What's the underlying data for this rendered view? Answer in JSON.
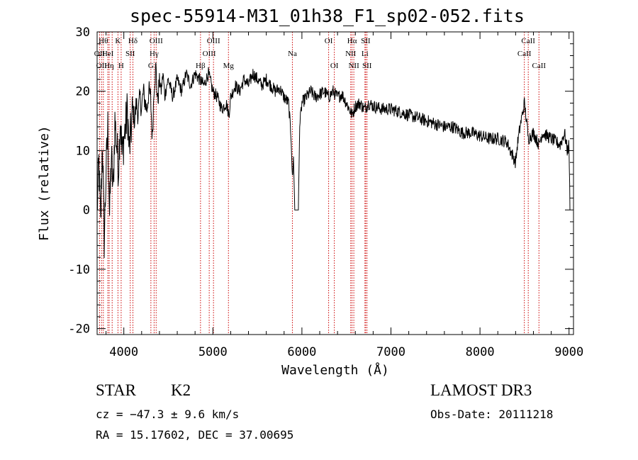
{
  "title": "spec-55914-M31_01h38_F1_sp02-052.fits",
  "info": {
    "class": "STAR",
    "subclass": "K2",
    "survey": "LAMOST DR3",
    "cz": "cz = −47.3 ± 9.6 km/s",
    "obs_date": "Obs-Date: 20111218",
    "radec": "RA =  15.17602, DEC =  37.00695"
  },
  "colors": {
    "spectrum": "#000000",
    "lines": "#cc0000",
    "axes": "#000000"
  },
  "chart_data": {
    "type": "line",
    "title": "spec-55914-M31_01h38_F1_sp02-052.fits",
    "xlabel": "Wavelength (Å)",
    "ylabel": "Flux (relative)",
    "xlim": [
      3700,
      9050
    ],
    "ylim": [
      -21,
      30
    ],
    "xticks": [
      4000,
      5000,
      6000,
      7000,
      8000,
      9000
    ],
    "yticks": [
      -20,
      -10,
      0,
      10,
      20,
      30
    ],
    "series": [
      {
        "name": "flux",
        "points": [
          [
            3700,
            0
          ],
          [
            3720,
            8
          ],
          [
            3740,
            -3
          ],
          [
            3760,
            12
          ],
          [
            3780,
            -5
          ],
          [
            3800,
            6
          ],
          [
            3820,
            14
          ],
          [
            3840,
            -1
          ],
          [
            3860,
            9
          ],
          [
            3880,
            3
          ],
          [
            3900,
            15
          ],
          [
            3920,
            11
          ],
          [
            3940,
            7
          ],
          [
            3960,
            16
          ],
          [
            3980,
            9
          ],
          [
            4000,
            12
          ],
          [
            4020,
            14
          ],
          [
            4040,
            17
          ],
          [
            4060,
            10
          ],
          [
            4080,
            13
          ],
          [
            4100,
            17
          ],
          [
            4120,
            15
          ],
          [
            4140,
            18
          ],
          [
            4160,
            16
          ],
          [
            4180,
            19
          ],
          [
            4200,
            17
          ],
          [
            4220,
            20
          ],
          [
            4240,
            18
          ],
          [
            4260,
            17
          ],
          [
            4280,
            20
          ],
          [
            4300,
            19
          ],
          [
            4320,
            12
          ],
          [
            4340,
            21
          ],
          [
            4360,
            24
          ],
          [
            4380,
            18
          ],
          [
            4400,
            22
          ],
          [
            4420,
            20
          ],
          [
            4440,
            23
          ],
          [
            4460,
            19
          ],
          [
            4480,
            21
          ],
          [
            4500,
            22
          ],
          [
            4550,
            19
          ],
          [
            4600,
            22
          ],
          [
            4650,
            20
          ],
          [
            4700,
            23
          ],
          [
            4750,
            21
          ],
          [
            4800,
            23
          ],
          [
            4850,
            22
          ],
          [
            4900,
            21
          ],
          [
            4950,
            23
          ],
          [
            5000,
            20
          ],
          [
            5050,
            19
          ],
          [
            5100,
            17
          ],
          [
            5150,
            18
          ],
          [
            5180,
            16
          ],
          [
            5200,
            19
          ],
          [
            5250,
            21
          ],
          [
            5300,
            20
          ],
          [
            5350,
            22
          ],
          [
            5400,
            21
          ],
          [
            5450,
            23
          ],
          [
            5500,
            22
          ],
          [
            5550,
            21
          ],
          [
            5600,
            22
          ],
          [
            5650,
            21
          ],
          [
            5700,
            20
          ],
          [
            5750,
            20.5
          ],
          [
            5800,
            19
          ],
          [
            5850,
            18
          ],
          [
            5880,
            12
          ],
          [
            5893,
            5
          ],
          [
            5905,
            9
          ],
          [
            5920,
            0
          ],
          [
            5960,
            0
          ],
          [
            5975,
            14
          ],
          [
            6000,
            18
          ],
          [
            6050,
            19
          ],
          [
            6100,
            20
          ],
          [
            6150,
            19
          ],
          [
            6200,
            19.5
          ],
          [
            6250,
            20
          ],
          [
            6300,
            19
          ],
          [
            6350,
            20
          ],
          [
            6400,
            19
          ],
          [
            6450,
            19.5
          ],
          [
            6500,
            18
          ],
          [
            6563,
            16
          ],
          [
            6600,
            17.5
          ],
          [
            6650,
            18
          ],
          [
            6700,
            17
          ],
          [
            6750,
            18
          ],
          [
            6800,
            17.5
          ],
          [
            6900,
            17
          ],
          [
            7000,
            17
          ],
          [
            7100,
            16.5
          ],
          [
            7200,
            16
          ],
          [
            7300,
            15.5
          ],
          [
            7400,
            15
          ],
          [
            7500,
            14.5
          ],
          [
            7600,
            14
          ],
          [
            7700,
            14
          ],
          [
            7800,
            13
          ],
          [
            7900,
            13
          ],
          [
            8000,
            12.5
          ],
          [
            8100,
            12
          ],
          [
            8200,
            12
          ],
          [
            8300,
            11.5
          ],
          [
            8400,
            8
          ],
          [
            8420,
            11
          ],
          [
            8450,
            14
          ],
          [
            8498,
            18
          ],
          [
            8530,
            14
          ],
          [
            8542,
            12
          ],
          [
            8600,
            13
          ],
          [
            8662,
            11
          ],
          [
            8700,
            13
          ],
          [
            8800,
            12
          ],
          [
            8900,
            11
          ],
          [
            8950,
            13
          ],
          [
            8980,
            10
          ],
          [
            9000,
            11
          ],
          [
            9010,
            0
          ]
        ]
      }
    ],
    "lines": [
      {
        "wavelength": 3727,
        "label": "OII",
        "row": 1
      },
      {
        "wavelength": 3750,
        "label": "OII",
        "row": 2
      },
      {
        "wavelength": 3770,
        "label": "Hθ",
        "row": 0
      },
      {
        "wavelength": 3820,
        "label": "HeI",
        "row": 1
      },
      {
        "wavelength": 3835,
        "label": "Hη",
        "row": 2
      },
      {
        "wavelength": 3869,
        "label": "",
        "row": 0
      },
      {
        "wavelength": 3934,
        "label": "K",
        "row": 0
      },
      {
        "wavelength": 3970,
        "label": "H",
        "row": 2
      },
      {
        "wavelength": 4072,
        "label": "SII",
        "row": 1
      },
      {
        "wavelength": 4102,
        "label": "Hδ",
        "row": 0
      },
      {
        "wavelength": 4304,
        "label": "G",
        "row": 2
      },
      {
        "wavelength": 4340,
        "label": "Hγ",
        "row": 1
      },
      {
        "wavelength": 4363,
        "label": "OIII",
        "row": 0
      },
      {
        "wavelength": 4861,
        "label": "Hβ",
        "row": 2
      },
      {
        "wavelength": 4959,
        "label": "OIII",
        "row": 1
      },
      {
        "wavelength": 5007,
        "label": "OIII",
        "row": 0
      },
      {
        "wavelength": 5175,
        "label": "Mg",
        "row": 2
      },
      {
        "wavelength": 5893,
        "label": "Na",
        "row": 1
      },
      {
        "wavelength": 6300,
        "label": "OI",
        "row": 0
      },
      {
        "wavelength": 6364,
        "label": "OI",
        "row": 2
      },
      {
        "wavelength": 6548,
        "label": "NII",
        "row": 1
      },
      {
        "wavelength": 6563,
        "label": "Hα",
        "row": 0
      },
      {
        "wavelength": 6583,
        "label": "NII",
        "row": 2
      },
      {
        "wavelength": 6708,
        "label": "Li",
        "row": 1
      },
      {
        "wavelength": 6716,
        "label": "SII",
        "row": 0
      },
      {
        "wavelength": 6731,
        "label": "SII",
        "row": 2
      },
      {
        "wavelength": 8498,
        "label": "CaII",
        "row": 1
      },
      {
        "wavelength": 8542,
        "label": "CaII",
        "row": 0
      },
      {
        "wavelength": 8662,
        "label": "CaII",
        "row": 2
      }
    ]
  }
}
